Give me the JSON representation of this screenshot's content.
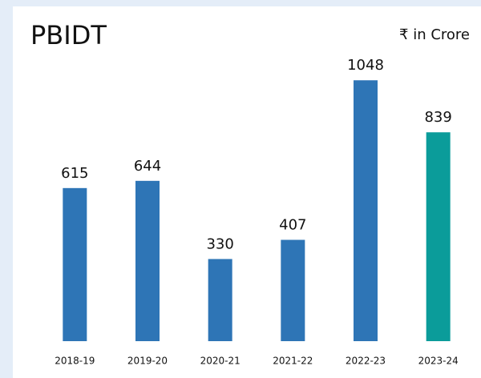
{
  "chart_data": {
    "type": "bar",
    "title": "PBIDT",
    "subtitle": "₹ in Crore",
    "categories": [
      "2018-19",
      "2019-20",
      "2020-21",
      "2021-22",
      "2022-23",
      "2023-24"
    ],
    "values": [
      615,
      644,
      330,
      407,
      1048,
      839
    ],
    "colors": [
      "#2e75b6",
      "#2e75b6",
      "#2e75b6",
      "#2e75b6",
      "#2e75b6",
      "#0b9c9a"
    ],
    "ylim": [
      0,
      1200
    ]
  }
}
